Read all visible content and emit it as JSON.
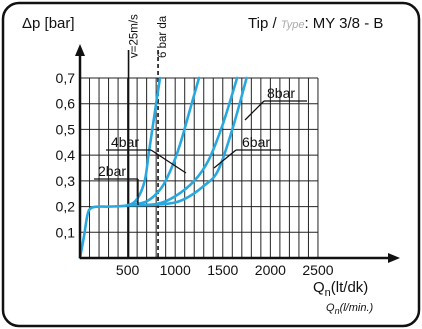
{
  "chart_data": {
    "type": "line",
    "title_prefix": "Tip / ",
    "title_italic": "Type",
    "title_value": ": MY 3/8 - B",
    "ylabel": "Δp [bar]",
    "xlabel_main": "Q",
    "xlabel_sub": "n",
    "xlabel_unit": "(lt/dk)",
    "xlabel2_main": "Q",
    "xlabel2_sub": "n",
    "xlabel2_unit": "(l/min.)",
    "xlim": [
      0,
      2700
    ],
    "ylim": [
      0,
      0.7
    ],
    "xticks": [
      500,
      1000,
      1500,
      2000,
      2500
    ],
    "yticks": [
      0.1,
      0.2,
      0.3,
      0.4,
      0.5,
      0.6,
      0.7
    ],
    "ytick_labels": [
      "0,1",
      "0,2",
      "0,3",
      "0,4",
      "0,5",
      "0,6",
      "0,7"
    ],
    "grid": true,
    "reference_lines": [
      {
        "label": "v=25m/s",
        "x": 510,
        "style": "solid"
      },
      {
        "label": "6 bar da",
        "x": 820,
        "style": "dashed"
      }
    ],
    "series": [
      {
        "name": "2bar",
        "x": [
          0,
          40,
          80,
          120,
          200,
          300,
          500,
          600,
          680,
          720,
          760,
          800,
          840
        ],
        "y": [
          0,
          0.08,
          0.17,
          0.195,
          0.2,
          0.2,
          0.205,
          0.23,
          0.3,
          0.4,
          0.5,
          0.6,
          0.7
        ]
      },
      {
        "name": "4bar",
        "x": [
          500,
          700,
          850,
          950,
          1050,
          1150,
          1250
        ],
        "y": [
          0.205,
          0.22,
          0.27,
          0.34,
          0.44,
          0.57,
          0.7
        ]
      },
      {
        "name": "6bar",
        "x": [
          500,
          800,
          1000,
          1200,
          1350,
          1500,
          1650
        ],
        "y": [
          0.205,
          0.21,
          0.24,
          0.3,
          0.38,
          0.52,
          0.7
        ]
      },
      {
        "name": "8bar",
        "x": [
          500,
          900,
          1100,
          1300,
          1450,
          1600,
          1750
        ],
        "y": [
          0.205,
          0.21,
          0.23,
          0.28,
          0.34,
          0.5,
          0.7
        ]
      }
    ],
    "annotations": [
      {
        "text": "8bar",
        "target_series": "8bar"
      },
      {
        "text": "6bar",
        "target_series": "6bar"
      },
      {
        "text": "4bar",
        "target_series": "4bar"
      },
      {
        "text": "2bar",
        "target_series": "2bar"
      }
    ],
    "line_color": "#29a8e0"
  }
}
